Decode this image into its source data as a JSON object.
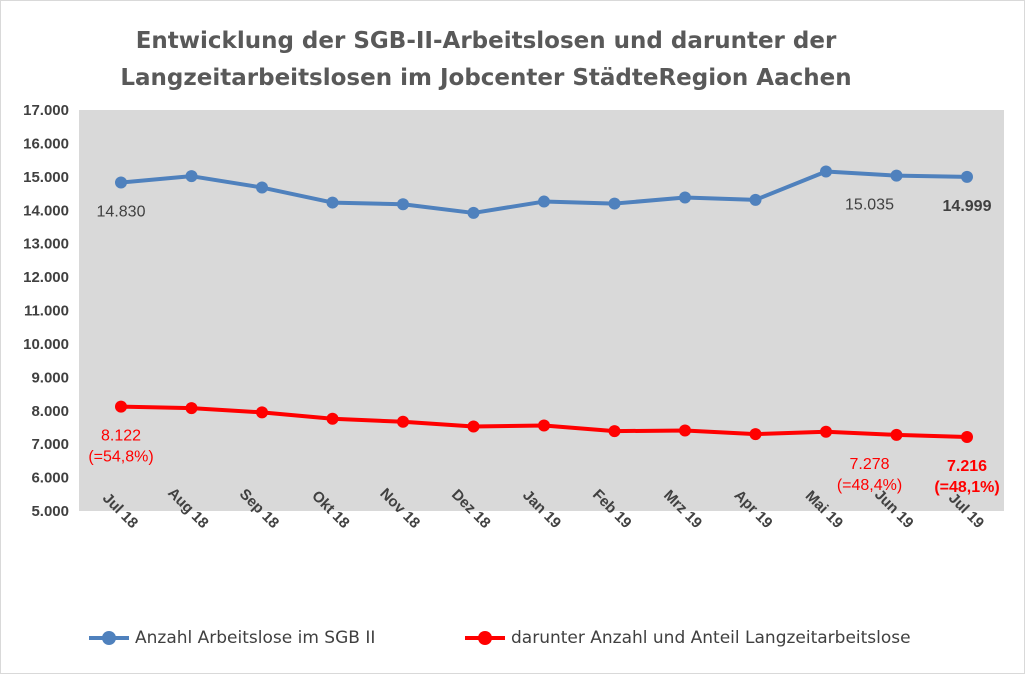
{
  "chart_data": {
    "type": "line",
    "title": [
      "Entwicklung der SGB-II-Arbeitslosen und darunter der",
      "Langzeitarbeitslosen im Jobcenter StädteRegion Aachen"
    ],
    "categories": [
      "Jul 18",
      "Aug 18",
      "Sep 18",
      "Okt 18",
      "Nov 18",
      "Dez 18",
      "Jan 19",
      "Feb 19",
      "Mrz 19",
      "Apr 19",
      "Mai 19",
      "Jun 19",
      "Jul 19"
    ],
    "y_ticks": [
      "5.000",
      "6.000",
      "7.000",
      "8.000",
      "9.000",
      "10.000",
      "11.000",
      "12.000",
      "13.000",
      "14.000",
      "15.000",
      "16.000",
      "17.000"
    ],
    "ylim": [
      5000,
      17000
    ],
    "plot_background": "#d9d9d9",
    "grid": false,
    "legend_position": "bottom",
    "series": [
      {
        "name": "Anzahl Arbeitslose im SGB II",
        "color": "#4f81bd",
        "values": [
          14830,
          15020,
          14680,
          14230,
          14180,
          13920,
          14260,
          14200,
          14380,
          14310,
          15160,
          15035,
          14999
        ],
        "labels": [
          {
            "index": 0,
            "lines": [
              "14.830"
            ],
            "color": "#404040",
            "bold": false,
            "placement": "below"
          },
          {
            "index": 11,
            "lines": [
              "15.035"
            ],
            "color": "#404040",
            "bold": false,
            "placement": "below-left"
          },
          {
            "index": 12,
            "lines": [
              "14.999"
            ],
            "color": "#404040",
            "bold": true,
            "placement": "below"
          }
        ]
      },
      {
        "name": "darunter Anzahl und Anteil Langzeitarbeitslose",
        "color": "#ff0000",
        "values": [
          8122,
          8080,
          7950,
          7760,
          7670,
          7530,
          7560,
          7390,
          7410,
          7300,
          7370,
          7278,
          7216
        ],
        "labels": [
          {
            "index": 0,
            "lines": [
              "8.122",
              "(=54,8%)"
            ],
            "color": "#ff0000",
            "bold": false,
            "placement": "below"
          },
          {
            "index": 11,
            "lines": [
              "7.278",
              "(=48,4%)"
            ],
            "color": "#ff0000",
            "bold": false,
            "placement": "below-left"
          },
          {
            "index": 12,
            "lines": [
              "7.216",
              "(=48,1%)"
            ],
            "color": "#ff0000",
            "bold": true,
            "placement": "below"
          }
        ]
      }
    ]
  }
}
